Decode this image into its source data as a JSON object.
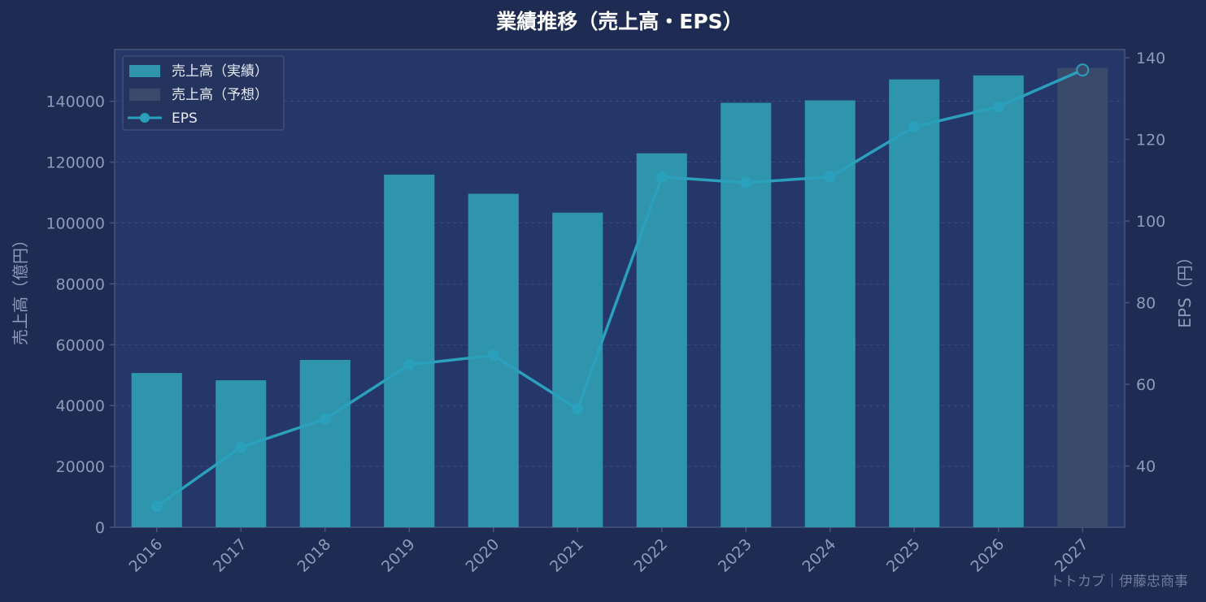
{
  "chart_data": {
    "type": "bar",
    "title": "業績推移（売上高・EPS）",
    "categories": [
      "2016",
      "2017",
      "2018",
      "2019",
      "2020",
      "2021",
      "2022",
      "2023",
      "2024",
      "2025",
      "2026",
      "2027"
    ],
    "series": [
      {
        "name": "売上高（実績）",
        "axis": "left",
        "type": "bar",
        "color": "#2e95ad",
        "values": [
          50700,
          48300,
          55000,
          115900,
          109600,
          103400,
          122900,
          139500,
          140300,
          147200,
          148500,
          null
        ]
      },
      {
        "name": "売上高（予想）",
        "axis": "left",
        "type": "bar",
        "color": "#3a4a6a",
        "values": [
          null,
          null,
          null,
          null,
          null,
          null,
          null,
          null,
          null,
          null,
          null,
          151000
        ]
      },
      {
        "name": "EPS",
        "axis": "right",
        "type": "line",
        "color": "#2aa0bc",
        "values": [
          30.1,
          44.6,
          51.5,
          64.8,
          67.1,
          54.0,
          110.8,
          109.4,
          110.8,
          123.1,
          128.0,
          137.0
        ]
      }
    ],
    "ylabel": "売上高（億円）",
    "y2label": "EPS（円）",
    "ylim": [
      0,
      157000
    ],
    "y2lim": [
      25,
      142
    ],
    "yticks": [
      0,
      20000,
      40000,
      60000,
      80000,
      100000,
      120000,
      140000
    ],
    "y2ticks": [
      40,
      60,
      80,
      100,
      120,
      140
    ],
    "grid": true,
    "legend": "top-left"
  },
  "watermark": "トトカブ｜伊藤忠商事",
  "colors": {
    "background": "#1e2b52",
    "plot_background": "#253668",
    "axis": "#46557a",
    "text": "#8d9ab8"
  }
}
